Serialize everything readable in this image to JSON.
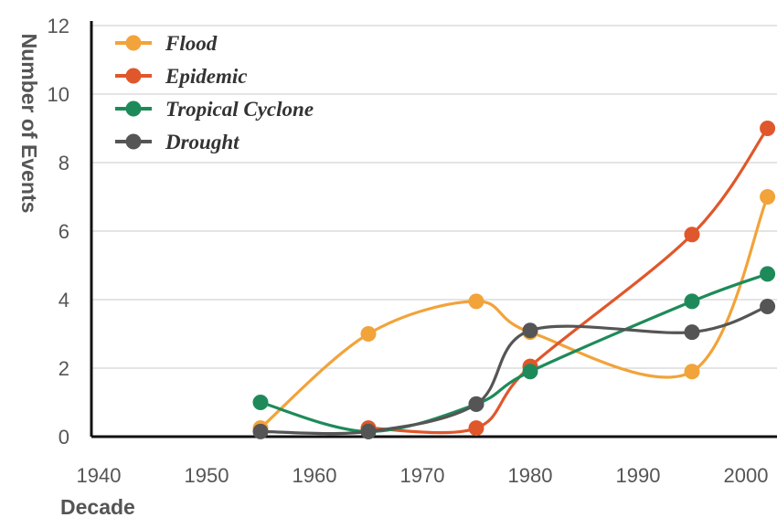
{
  "chart_data": {
    "type": "line",
    "title": "",
    "xlabel": "Decade",
    "ylabel": "Number of Events",
    "x_ticks": [
      "1940",
      "1950",
      "1960",
      "1970",
      "1980",
      "1990",
      "2000"
    ],
    "y_ticks": [
      "0",
      "2",
      "4",
      "6",
      "8",
      "10",
      "12"
    ],
    "xlim": [
      1940,
      2002
    ],
    "ylim": [
      0,
      12
    ],
    "grid": "horizontal",
    "legend_position": "top-left",
    "series": [
      {
        "name": "Flood",
        "color": "#f2a33a",
        "x": [
          1955,
          1965,
          1975,
          1980,
          1995,
          2002
        ],
        "y": [
          0.25,
          3,
          3.95,
          3.05,
          1.9,
          7
        ]
      },
      {
        "name": "Epidemic",
        "color": "#e0572b",
        "x": [
          1965,
          1975,
          1980,
          1995,
          2002
        ],
        "y": [
          0.25,
          0.25,
          2.05,
          5.9,
          9
        ]
      },
      {
        "name": "Tropical Cyclone",
        "color": "#1e8a5a",
        "x": [
          1955,
          1965,
          1975,
          1980,
          1995,
          2002
        ],
        "y": [
          1,
          0.15,
          0.95,
          1.9,
          3.95,
          4.75
        ]
      },
      {
        "name": "Drought",
        "color": "#555555",
        "x": [
          1955,
          1965,
          1975,
          1980,
          1995,
          2002
        ],
        "y": [
          0.15,
          0.15,
          0.95,
          3.1,
          3.05,
          3.8
        ]
      }
    ]
  }
}
